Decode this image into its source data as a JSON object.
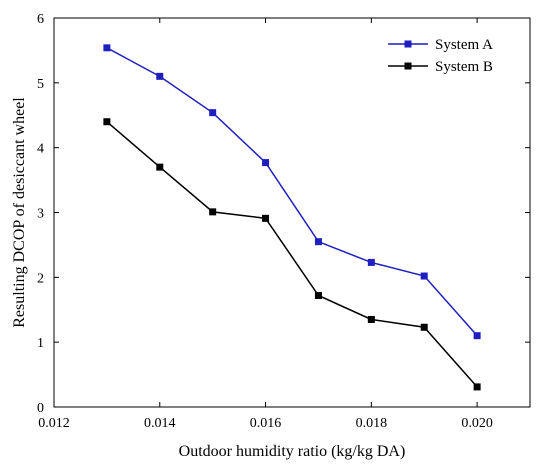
{
  "chart_data": {
    "type": "line",
    "title": "",
    "xlabel": "Outdoor humidity ratio (kg/kg DA)",
    "ylabel": "Resulting DCOP of desiccant wheel",
    "xlim": [
      0.012,
      0.021
    ],
    "ylim": [
      0,
      6
    ],
    "x_ticks": [
      "0.012",
      "0.014",
      "0.016",
      "0.018",
      "0.020"
    ],
    "y_ticks": [
      "0",
      "1",
      "2",
      "3",
      "4",
      "5",
      "6"
    ],
    "grid": false,
    "legend_position": "top-right",
    "x": [
      0.013,
      0.014,
      0.015,
      0.016,
      0.017,
      0.018,
      0.019,
      0.02
    ],
    "series": [
      {
        "name": "System A",
        "color": "#1f1fbf",
        "marker": "square",
        "values": [
          5.54,
          5.1,
          4.54,
          3.77,
          2.55,
          2.23,
          2.02,
          1.1
        ]
      },
      {
        "name": "System B",
        "color": "#000000",
        "marker": "square",
        "values": [
          4.4,
          3.7,
          3.01,
          2.91,
          1.72,
          1.35,
          1.23,
          0.31
        ]
      }
    ]
  }
}
